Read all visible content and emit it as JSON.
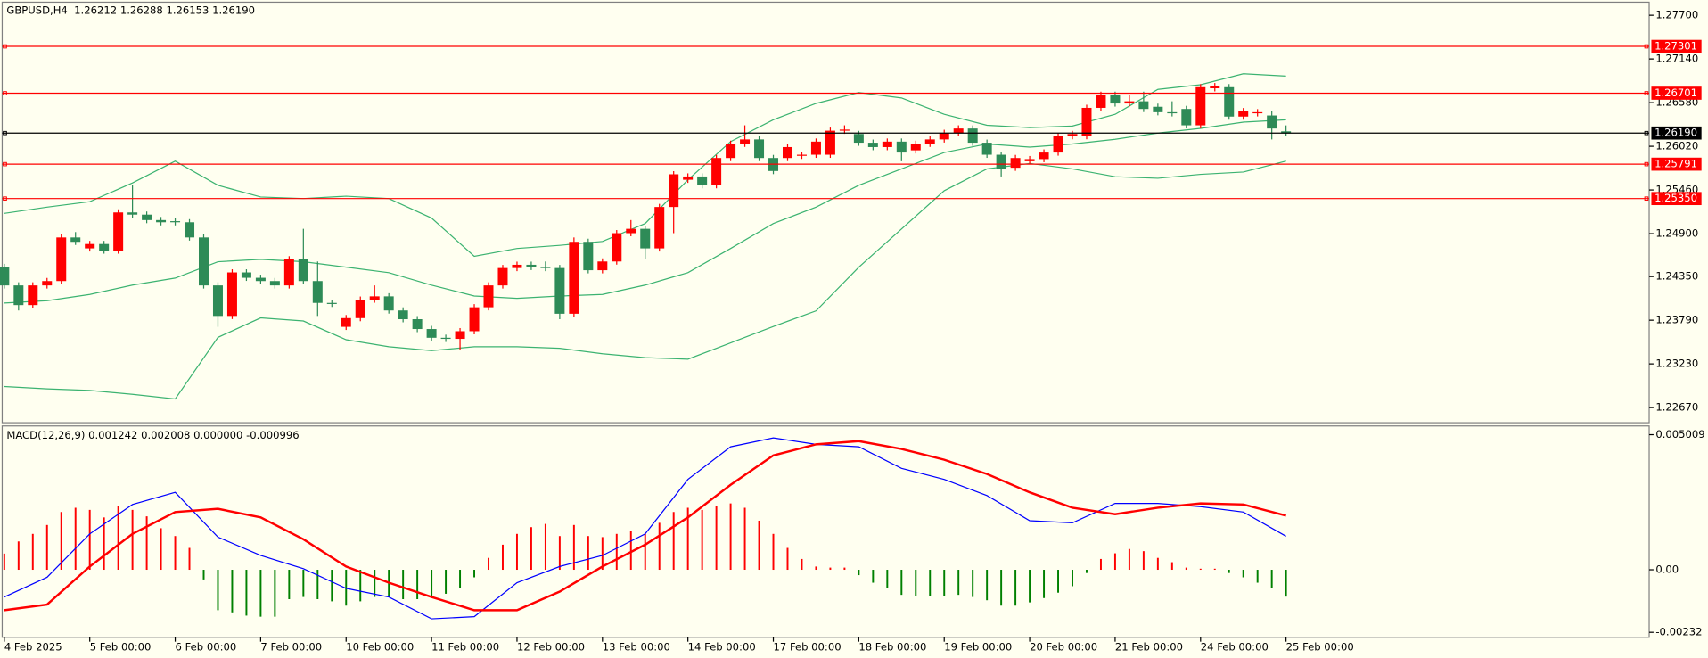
{
  "chart_data": [
    {
      "type": "candlestick",
      "title": "GBPUSD,H4  1.26212 1.26288 1.26153 1.26190",
      "xlim": [
        -0.15,
        115.5
      ],
      "x_labels": [
        {
          "index": 0,
          "label": "4 Feb 2025"
        },
        {
          "index": 6,
          "label": "5 Feb 00:00"
        },
        {
          "index": 12,
          "label": "6 Feb 00:00"
        },
        {
          "index": 18,
          "label": "7 Feb 00:00"
        },
        {
          "index": 24,
          "label": "10 Feb 00:00"
        },
        {
          "index": 30,
          "label": "11 Feb 00:00"
        },
        {
          "index": 36,
          "label": "12 Feb 00:00"
        },
        {
          "index": 42,
          "label": "13 Feb 00:00"
        },
        {
          "index": 48,
          "label": "14 Feb 00:00"
        },
        {
          "index": 54,
          "label": "17 Feb 00:00"
        },
        {
          "index": 60,
          "label": "18 Feb 00:00"
        },
        {
          "index": 66,
          "label": "19 Feb 00:00"
        },
        {
          "index": 72,
          "label": "20 Feb 00:00"
        },
        {
          "index": 78,
          "label": "21 Feb 00:00"
        },
        {
          "index": 84,
          "label": "24 Feb 00:00"
        },
        {
          "index": 90,
          "label": "25 Feb 00:00"
        }
      ],
      "ylim": [
        1.22476,
        1.27868
      ],
      "yticks": [
        {
          "value": 1.277,
          "label": "1.27700"
        },
        {
          "value": 1.2714,
          "label": "1.27140"
        },
        {
          "value": 1.2658,
          "label": "1.26580"
        },
        {
          "value": 1.2602,
          "label": "1.26020"
        },
        {
          "value": 1.2546,
          "label": "1.25460"
        },
        {
          "value": 1.249,
          "label": "1.24900"
        },
        {
          "value": 1.2435,
          "label": "1.24350"
        },
        {
          "value": 1.2379,
          "label": "1.23790"
        },
        {
          "value": 1.2323,
          "label": "1.23230"
        },
        {
          "value": 1.2267,
          "label": "1.22670"
        }
      ],
      "up_color": "#ff0000",
      "down_color": "#2e8b57",
      "open": [
        1.24473,
        1.24236,
        1.23984,
        1.24236,
        1.24292,
        1.24851,
        1.24711,
        1.24767,
        1.24683,
        1.25172,
        1.25144,
        1.25074,
        1.2506,
        1.25046,
        1.24851,
        1.24236,
        1.23845,
        1.24403,
        1.24334,
        1.24292,
        1.24236,
        1.24571,
        1.24292,
        1.24012,
        1.23705,
        1.23817,
        1.24054,
        1.24096,
        1.23915,
        1.23803,
        1.23677,
        1.23565,
        1.23551,
        1.23649,
        1.23956,
        1.24236,
        1.24459,
        1.24501,
        1.24473,
        1.24459,
        1.23873,
        1.24795,
        1.24431,
        1.24543,
        1.24906,
        1.24962,
        1.24711,
        1.25242,
        1.25591,
        1.25633,
        1.25521,
        1.2587,
        1.26052,
        1.26108,
        1.2587,
        1.2587,
        1.25898,
        1.25912,
        1.25912,
        1.2622,
        1.26178,
        1.26066,
        1.2601,
        1.2608,
        1.25968,
        1.26052,
        1.26108,
        1.26192,
        1.26248,
        1.26066,
        1.25912,
        1.25745,
        1.25828,
        1.25856,
        1.2594,
        1.2615,
        1.2615,
        1.26513,
        1.26681,
        1.26569,
        1.26597,
        1.26527,
        1.26457,
        1.26499,
        1.26289,
        1.26764,
        1.26778,
        1.26401,
        1.26443,
        1.26415,
        1.26212
      ],
      "high": [
        1.24513,
        1.24276,
        1.24276,
        1.24332,
        1.24891,
        1.2492,
        1.24807,
        1.24807,
        1.25212,
        1.25521,
        1.25184,
        1.25114,
        1.251,
        1.25086,
        1.24891,
        1.24276,
        1.24443,
        1.24443,
        1.24374,
        1.24332,
        1.24611,
        1.24962,
        1.24543,
        1.24052,
        1.23857,
        1.24094,
        1.24236,
        1.24136,
        1.23955,
        1.23843,
        1.23717,
        1.23605,
        1.23689,
        1.23996,
        1.24276,
        1.24499,
        1.24541,
        1.24541,
        1.24543,
        1.24499,
        1.24851,
        1.24835,
        1.24583,
        1.24946,
        1.25074,
        1.25002,
        1.25282,
        1.25701,
        1.25673,
        1.25673,
        1.2591,
        1.26092,
        1.26289,
        1.26148,
        1.2591,
        1.2605,
        1.25952,
        1.2612,
        1.2626,
        1.26289,
        1.26218,
        1.26106,
        1.2612,
        1.2612,
        1.26092,
        1.26148,
        1.26232,
        1.26289,
        1.26288,
        1.26106,
        1.25952,
        1.2591,
        1.25896,
        1.2598,
        1.2619,
        1.26218,
        1.26553,
        1.26721,
        1.26721,
        1.26681,
        1.26721,
        1.26567,
        1.26597,
        1.26539,
        1.26818,
        1.26832,
        1.26818,
        1.26511,
        1.26497,
        1.26471,
        1.26288
      ],
      "low": [
        1.24196,
        1.23915,
        1.23944,
        1.24196,
        1.24252,
        1.24755,
        1.24671,
        1.24643,
        1.24643,
        1.25104,
        1.25034,
        1.25006,
        1.25006,
        1.24811,
        1.24196,
        1.23705,
        1.23805,
        1.24294,
        1.24252,
        1.24196,
        1.24196,
        1.24252,
        1.23845,
        1.2396,
        1.23665,
        1.23777,
        1.24014,
        1.23875,
        1.23763,
        1.23637,
        1.23525,
        1.23511,
        1.23411,
        1.23609,
        1.23916,
        1.24196,
        1.24419,
        1.24433,
        1.24419,
        1.23803,
        1.23833,
        1.24391,
        1.24391,
        1.24503,
        1.24866,
        1.24571,
        1.24671,
        1.24906,
        1.25551,
        1.25481,
        1.25481,
        1.2583,
        1.26012,
        1.2583,
        1.25663,
        1.2583,
        1.25858,
        1.25872,
        1.25872,
        1.2618,
        1.26026,
        1.2597,
        1.2597,
        1.25828,
        1.25928,
        1.26012,
        1.26068,
        1.26152,
        1.26026,
        1.25872,
        1.25633,
        1.25705,
        1.25788,
        1.25816,
        1.259,
        1.2611,
        1.2611,
        1.26473,
        1.26529,
        1.26529,
        1.26459,
        1.26417,
        1.26403,
        1.26249,
        1.26249,
        1.26724,
        1.26361,
        1.26361,
        1.26403,
        1.26108,
        1.26153
      ],
      "close": [
        1.24236,
        1.23984,
        1.24236,
        1.24292,
        1.24851,
        1.24795,
        1.24767,
        1.24683,
        1.25172,
        1.25144,
        1.25074,
        1.25046,
        1.25046,
        1.24851,
        1.24236,
        1.23845,
        1.24403,
        1.24334,
        1.24292,
        1.24236,
        1.24571,
        1.24292,
        1.24012,
        1.24,
        1.23817,
        1.24054,
        1.24096,
        1.23915,
        1.23803,
        1.23677,
        1.23565,
        1.23551,
        1.23649,
        1.23956,
        1.24236,
        1.24459,
        1.24501,
        1.24473,
        1.24459,
        1.23873,
        1.24795,
        1.24431,
        1.24543,
        1.24906,
        1.24962,
        1.24711,
        1.25242,
        1.25661,
        1.25633,
        1.25521,
        1.2587,
        1.26052,
        1.26108,
        1.2587,
        1.25703,
        1.2601,
        1.25912,
        1.2608,
        1.2622,
        1.26234,
        1.26066,
        1.2601,
        1.2608,
        1.2594,
        1.26052,
        1.26108,
        1.26192,
        1.26248,
        1.26066,
        1.25912,
        1.25731,
        1.2587,
        1.25856,
        1.2594,
        1.2615,
        1.26178,
        1.26513,
        1.26681,
        1.26569,
        1.26597,
        1.26499,
        1.26457,
        1.26443,
        1.26289,
        1.26778,
        1.26792,
        1.26401,
        1.26471,
        1.26457,
        1.26248,
        1.2619
      ],
      "bands": {
        "color": "#3cb371",
        "x": [
          0,
          3,
          6,
          9,
          12,
          15,
          18,
          21,
          24,
          27,
          30,
          33,
          36,
          39,
          42,
          45,
          48,
          51,
          54,
          57,
          60,
          63,
          66,
          69,
          72,
          75,
          78,
          81,
          84,
          87,
          90
        ],
        "upper": [
          1.2516,
          1.2524,
          1.2531,
          1.2555,
          1.2583,
          1.2552,
          1.2537,
          1.2535,
          1.2538,
          1.2535,
          1.251,
          1.2461,
          1.2471,
          1.2475,
          1.248,
          1.2503,
          1.2559,
          1.2608,
          1.2636,
          1.2657,
          1.2671,
          1.2664,
          1.2643,
          1.2629,
          1.2626,
          1.2628,
          1.2643,
          1.2675,
          1.2681,
          1.2695,
          1.2692
        ],
        "middle": [
          1.2401,
          1.2404,
          1.2412,
          1.2424,
          1.2433,
          1.2454,
          1.2457,
          1.2454,
          1.2447,
          1.244,
          1.2424,
          1.241,
          1.2407,
          1.241,
          1.2412,
          1.2424,
          1.244,
          1.2471,
          1.2503,
          1.2524,
          1.2552,
          1.2573,
          1.2594,
          1.2605,
          1.2601,
          1.2605,
          1.2611,
          1.2619,
          1.2625,
          1.2633,
          1.2636
        ],
        "lower": [
          1.2294,
          1.2291,
          1.2289,
          1.2284,
          1.2278,
          1.2357,
          1.2382,
          1.2378,
          1.2354,
          1.2345,
          1.234,
          1.2345,
          1.2345,
          1.2343,
          1.2336,
          1.2331,
          1.2329,
          1.235,
          1.2371,
          1.2391,
          1.2447,
          1.2496,
          1.2545,
          1.2573,
          1.258,
          1.2573,
          1.2563,
          1.2561,
          1.2566,
          1.2569,
          1.2583
        ]
      },
      "levels": [
        {
          "value": 1.27301,
          "color": "#ff0000"
        },
        {
          "value": 1.26701,
          "color": "#ff0000"
        },
        {
          "value": 1.2619,
          "label": "1.26190",
          "color": "#000000"
        },
        {
          "value": 1.25791,
          "color": "#ff0000"
        },
        {
          "value": 1.2535,
          "label": "1.25350",
          "color": "#ff0000"
        }
      ]
    },
    {
      "type": "macd",
      "title": "MACD(12,26,9) 0.001242 0.002008 0.000000 -0.000996",
      "xlim": [
        -0.15,
        115.5
      ],
      "ylim": [
        -0.002505,
        0.005332
      ],
      "yticks": [
        0.005009,
        {
          "value": 0,
          "label": "0.00"
        },
        -0.00232
      ],
      "histogram": {
        "up_color": "#ff0000",
        "down_color": "#008000",
        "values": [
          0.0006,
          0.00105,
          0.00133,
          0.00166,
          0.00214,
          0.0023,
          0.00222,
          0.00194,
          0.00238,
          0.00222,
          0.00198,
          0.00154,
          0.00125,
          0.00081,
          -0.00036,
          -0.0015,
          -0.00158,
          -0.0017,
          -0.00174,
          -0.00174,
          -0.00109,
          -0.00101,
          -0.00109,
          -0.00117,
          -0.00133,
          -0.00117,
          -0.00101,
          -0.00101,
          -0.00109,
          -0.00109,
          -0.00101,
          -0.00089,
          -0.00069,
          -0.00028,
          0.00044,
          0.00093,
          0.00133,
          0.00158,
          0.0017,
          0.00125,
          0.00166,
          0.00125,
          0.00121,
          0.00133,
          0.00145,
          0.00133,
          0.00174,
          0.00214,
          0.0023,
          0.00222,
          0.00238,
          0.00246,
          0.0023,
          0.00182,
          0.00133,
          0.00081,
          0.0004,
          0.00012,
          8e-05,
          8e-05,
          -0.0002,
          -0.00048,
          -0.00069,
          -0.00093,
          -0.00097,
          -0.00097,
          -0.00097,
          -0.00093,
          -0.00101,
          -0.00113,
          -0.00133,
          -0.00133,
          -0.00121,
          -0.00105,
          -0.00085,
          -0.00061,
          -0.00012,
          0.0004,
          0.00061,
          0.00077,
          0.00069,
          0.00044,
          0.00028,
          8e-05,
          4e-05,
          4e-05,
          -0.00012,
          -0.00028,
          -0.00048,
          -0.00069,
          -0.000996
        ]
      },
      "lines": [
        {
          "color": "#0000ff",
          "x": [
            0,
            3,
            6,
            9,
            12,
            15,
            18,
            21,
            24,
            27,
            30,
            33,
            36,
            39,
            42,
            45,
            48,
            51,
            54,
            57,
            60,
            63,
            66,
            69,
            72,
            75,
            78,
            81,
            84,
            87,
            90
          ],
          "values": [
            -0.00101,
            -0.00028,
            0.00133,
            0.00242,
            0.00287,
            0.00121,
            0.00053,
            4e-05,
            -0.00069,
            -0.00101,
            -0.00182,
            -0.00174,
            -0.00048,
            0.00012,
            0.00053,
            0.00133,
            0.00335,
            0.00456,
            0.00489,
            0.00465,
            0.00456,
            0.00376,
            0.00335,
            0.00275,
            0.00182,
            0.00174,
            0.00246,
            0.00246,
            0.00234,
            0.00214,
            0.001242
          ]
        },
        {
          "color": "#ff0000",
          "x": [
            0,
            3,
            6,
            9,
            12,
            15,
            18,
            21,
            24,
            27,
            30,
            33,
            36,
            39,
            42,
            45,
            48,
            51,
            54,
            57,
            60,
            63,
            66,
            69,
            72,
            75,
            78,
            81,
            84,
            87,
            90
          ],
          "values": [
            -0.0015,
            -0.00129,
            0.00012,
            0.00133,
            0.00214,
            0.00226,
            0.00194,
            0.00113,
            0.00012,
            -0.00048,
            -0.00101,
            -0.0015,
            -0.0015,
            -0.00081,
            0.00012,
            0.00093,
            0.00194,
            0.00315,
            0.00424,
            0.00465,
            0.00477,
            0.00448,
            0.00408,
            0.00355,
            0.00287,
            0.0023,
            0.00206,
            0.0023,
            0.00246,
            0.00242,
            0.002008
          ]
        }
      ]
    }
  ]
}
